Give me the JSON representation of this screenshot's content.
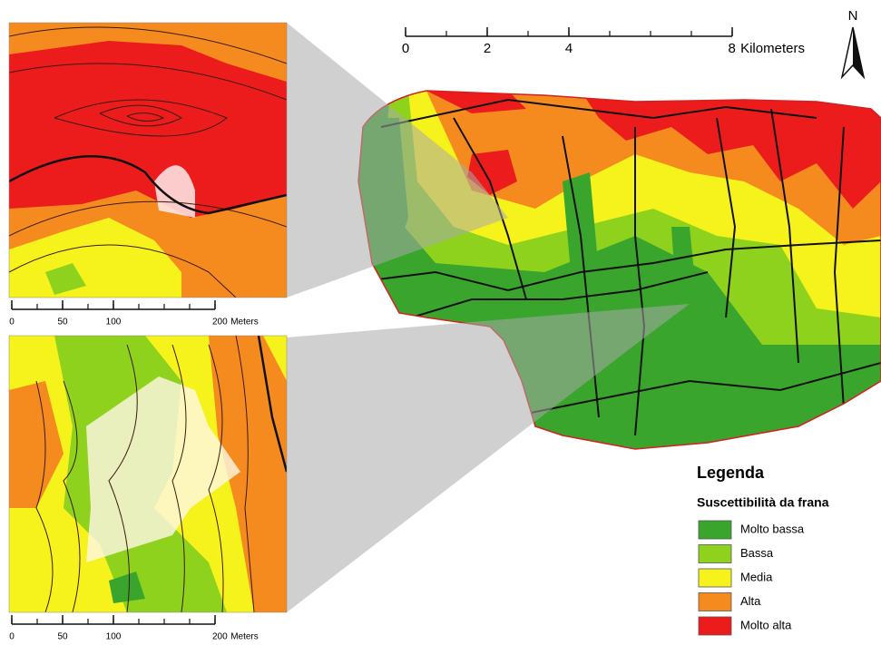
{
  "main_map": {
    "north": "N",
    "scale_bar": {
      "ticks": [
        0,
        2,
        4,
        8
      ],
      "unit": "Kilometers"
    }
  },
  "inset_top": {
    "scale_bar": {
      "ticks": [
        0,
        50,
        100,
        200
      ],
      "unit": "Meters"
    }
  },
  "inset_bottom": {
    "scale_bar": {
      "ticks": [
        0,
        50,
        100,
        200
      ],
      "unit": "Meters"
    }
  },
  "legend": {
    "title": "Legenda",
    "subtitle": "Suscettibilità da frana",
    "items": [
      {
        "name": "Molto bassa",
        "color": "#3aa52c"
      },
      {
        "name": "Bassa",
        "color": "#8fd21e"
      },
      {
        "name": "Media",
        "color": "#f6f21c"
      },
      {
        "name": "Alta",
        "color": "#f58b1f"
      },
      {
        "name": "Molto alta",
        "color": "#ec1c1c"
      }
    ]
  }
}
